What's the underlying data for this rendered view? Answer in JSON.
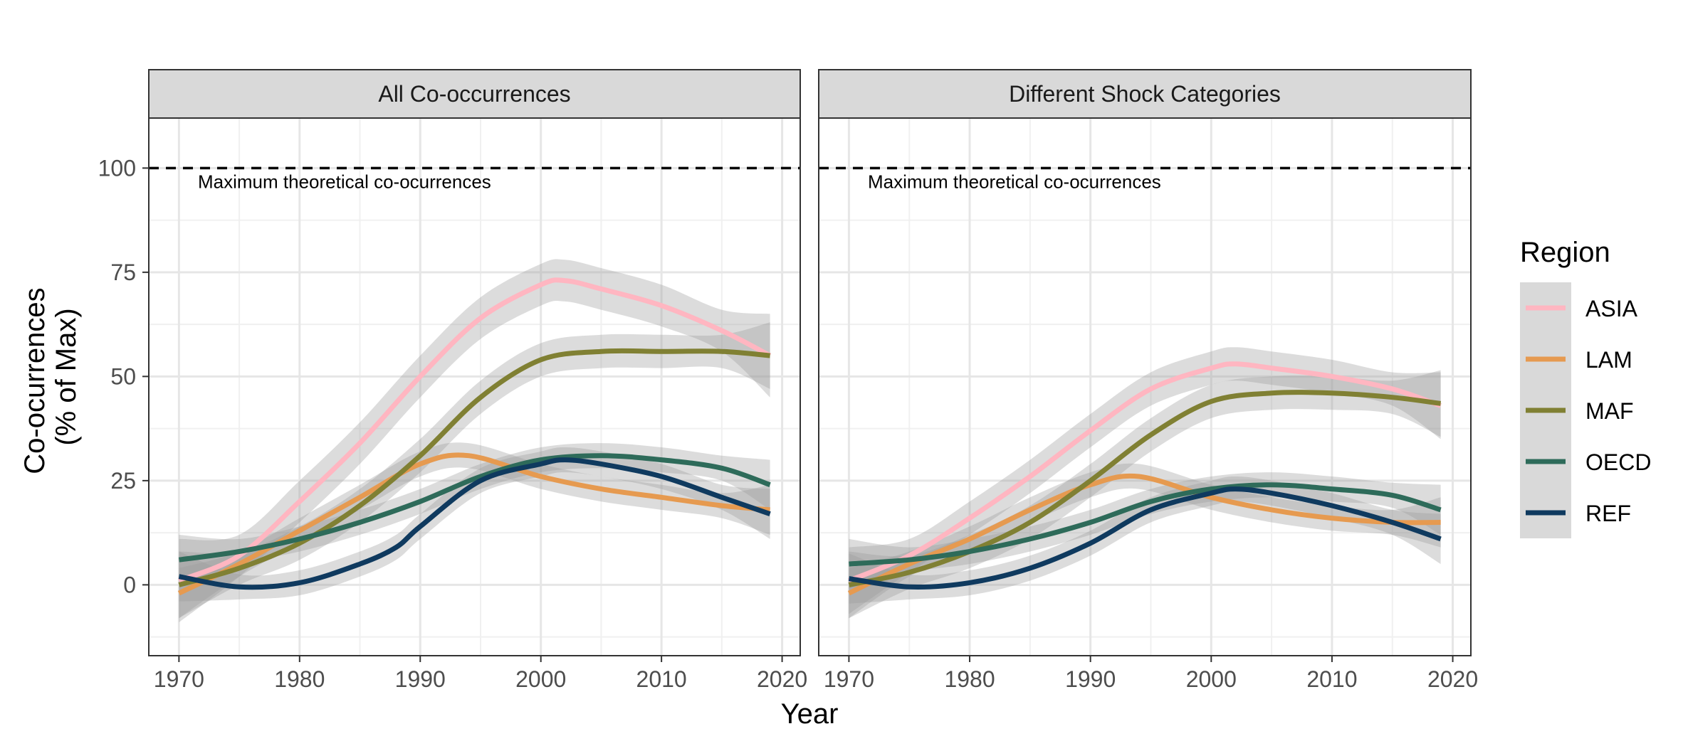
{
  "chart_data": {
    "type": "line",
    "xlabel": "Year",
    "ylabel_lines": [
      "Co-ocurrences",
      "(% of Max)"
    ],
    "xlim": [
      1967.5,
      2021.5
    ],
    "ylim": [
      -17,
      112
    ],
    "x_ticks": [
      1970,
      1980,
      1990,
      2000,
      2010,
      2020
    ],
    "y_ticks": [
      0,
      25,
      50,
      75,
      100
    ],
    "reference_line": {
      "y": 100,
      "style": "dashed",
      "label": "Maximum theoretical co-ocurrences"
    },
    "grid": true,
    "legend": {
      "title": "Region",
      "position": "right",
      "entries": [
        {
          "name": "ASIA",
          "color": "#FFB6C1"
        },
        {
          "name": "LAM",
          "color": "#E69A50"
        },
        {
          "name": "MAF",
          "color": "#808033"
        },
        {
          "name": "OECD",
          "color": "#2E6B5A"
        },
        {
          "name": "REF",
          "color": "#0F3A5F"
        }
      ]
    },
    "panels": [
      {
        "title": "All Co-occurrences",
        "series": [
          {
            "name": "ASIA",
            "color": "#FFB6C1",
            "band_halfwidth": 5,
            "x": [
              1970,
              1975,
              1980,
              1985,
              1990,
              1995,
              2000,
              2002,
              2005,
              2010,
              2015,
              2019
            ],
            "y": [
              1,
              7,
              20,
              34,
              50,
              64,
              72,
              73,
              71,
              67,
              61,
              55
            ]
          },
          {
            "name": "LAM",
            "color": "#E69A50",
            "band_halfwidth": 3,
            "x": [
              1970,
              1975,
              1980,
              1985,
              1990,
              1994,
              2000,
              2005,
              2010,
              2015,
              2019
            ],
            "y": [
              -2,
              5,
              13,
              21,
              29,
              31,
              26,
              23,
              21,
              19,
              18
            ]
          },
          {
            "name": "MAF",
            "color": "#808033",
            "band_halfwidth": 4,
            "x": [
              1970,
              1975,
              1980,
              1985,
              1990,
              1995,
              2000,
              2005,
              2010,
              2015,
              2019
            ],
            "y": [
              0,
              4,
              10,
              19,
              31,
              45,
              54,
              56,
              56,
              56,
              55
            ]
          },
          {
            "name": "OECD",
            "color": "#2E6B5A",
            "band_halfwidth": 3,
            "x": [
              1970,
              1975,
              1980,
              1985,
              1990,
              1995,
              2000,
              2005,
              2010,
              2015,
              2019
            ],
            "y": [
              6,
              8,
              11,
              15,
              20,
              26,
              30,
              31,
              30,
              28,
              24
            ]
          },
          {
            "name": "REF",
            "color": "#0F3A5F",
            "band_halfwidth": 3,
            "x": [
              1970,
              1975,
              1980,
              1985,
              1988,
              1990,
              1995,
              2000,
              2002,
              2005,
              2010,
              2015,
              2019
            ],
            "y": [
              2,
              -0.5,
              0.5,
              5,
              9,
              14,
              25,
              29,
              30,
              29,
              26,
              21,
              17
            ]
          }
        ]
      },
      {
        "title": "Different Shock Categories",
        "series": [
          {
            "name": "ASIA",
            "color": "#FFB6C1",
            "band_halfwidth": 4,
            "x": [
              1970,
              1975,
              1980,
              1985,
              1990,
              1995,
              2000,
              2002,
              2005,
              2010,
              2015,
              2019
            ],
            "y": [
              1,
              7,
              16,
              26,
              37,
              47,
              52,
              53,
              52,
              50,
              47,
              43
            ]
          },
          {
            "name": "LAM",
            "color": "#E69A50",
            "band_halfwidth": 3,
            "x": [
              1970,
              1975,
              1980,
              1985,
              1990,
              1994,
              2000,
              2005,
              2010,
              2015,
              2019
            ],
            "y": [
              -2,
              5,
              11,
              18,
              24,
              26,
              21,
              18,
              16,
              15,
              15
            ]
          },
          {
            "name": "MAF",
            "color": "#808033",
            "band_halfwidth": 4,
            "x": [
              1970,
              1975,
              1980,
              1985,
              1990,
              1995,
              2000,
              2005,
              2010,
              2015,
              2019
            ],
            "y": [
              0,
              3,
              8,
              15,
              25,
              36,
              44,
              46,
              46,
              45,
              43.5
            ]
          },
          {
            "name": "OECD",
            "color": "#2E6B5A",
            "band_halfwidth": 3,
            "x": [
              1970,
              1975,
              1980,
              1985,
              1990,
              1995,
              2000,
              2005,
              2010,
              2015,
              2019
            ],
            "y": [
              5,
              6,
              8,
              11,
              15,
              20,
              23,
              24,
              23,
              21.5,
              18
            ]
          },
          {
            "name": "REF",
            "color": "#0F3A5F",
            "band_halfwidth": 3,
            "x": [
              1970,
              1975,
              1980,
              1985,
              1990,
              1995,
              2000,
              2002,
              2005,
              2010,
              2015,
              2019
            ],
            "y": [
              1.5,
              -0.5,
              0.5,
              4,
              10,
              18,
              22,
              23,
              22,
              19,
              15,
              11
            ]
          }
        ]
      }
    ]
  }
}
